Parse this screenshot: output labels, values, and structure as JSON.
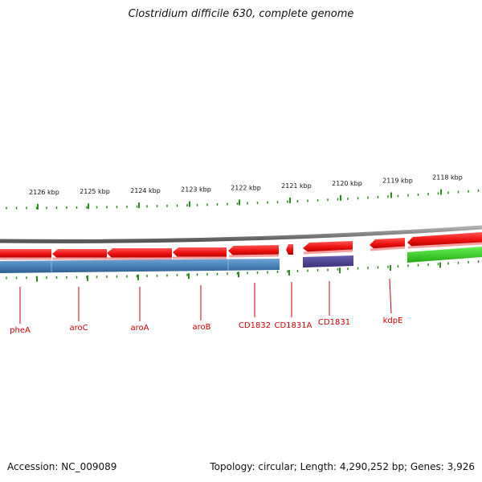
{
  "title": "Clostridium difficile 630, complete genome",
  "footer": {
    "accession": "Accession: NC_009089",
    "summary": "Topology: circular; Length: 4,290,252 bp; Genes: 3,926"
  },
  "colors": {
    "backbone": "#7f7f7f",
    "tick": "#2e8b1f",
    "label": "#cc0000",
    "gene_red": "#ee1111",
    "gene_blue": "#4a82b8",
    "gene_purple": "#4b3f8f",
    "gene_green": "#33cc22"
  },
  "ruler": {
    "labels": [
      "2126 kbp",
      "2125 kbp",
      "2124 kbp",
      "2123 kbp",
      "2122 kbp",
      "2121 kbp",
      "2120 kbp",
      "2119 kbp",
      "2118 kbp"
    ]
  },
  "genes": [
    {
      "name": "pheA",
      "strand": "reverse",
      "track": "upper",
      "color": "gene_red"
    },
    {
      "name": "aroC",
      "strand": "reverse",
      "track": "upper",
      "color": "gene_red"
    },
    {
      "name": "aroA",
      "strand": "reverse",
      "track": "upper",
      "color": "gene_red"
    },
    {
      "name": "aroB",
      "strand": "reverse",
      "track": "upper",
      "color": "gene_red"
    },
    {
      "name": "CD1832",
      "strand": "reverse",
      "track": "upper",
      "color": "gene_red"
    },
    {
      "name": "CD1831A",
      "strand": "reverse",
      "track": "upper",
      "color": "gene_red"
    },
    {
      "name": "CD1831",
      "strand": "reverse",
      "track": "upper",
      "color": "gene_red"
    },
    {
      "name": "kdpE",
      "strand": "reverse",
      "track": "upper",
      "color": "gene_red"
    }
  ],
  "features_unlabeled": [
    {
      "track": "upper",
      "color": "gene_red"
    },
    {
      "track": "lower",
      "color": "gene_blue"
    },
    {
      "track": "lower",
      "color": "gene_purple"
    },
    {
      "track": "lower",
      "color": "gene_green"
    }
  ]
}
